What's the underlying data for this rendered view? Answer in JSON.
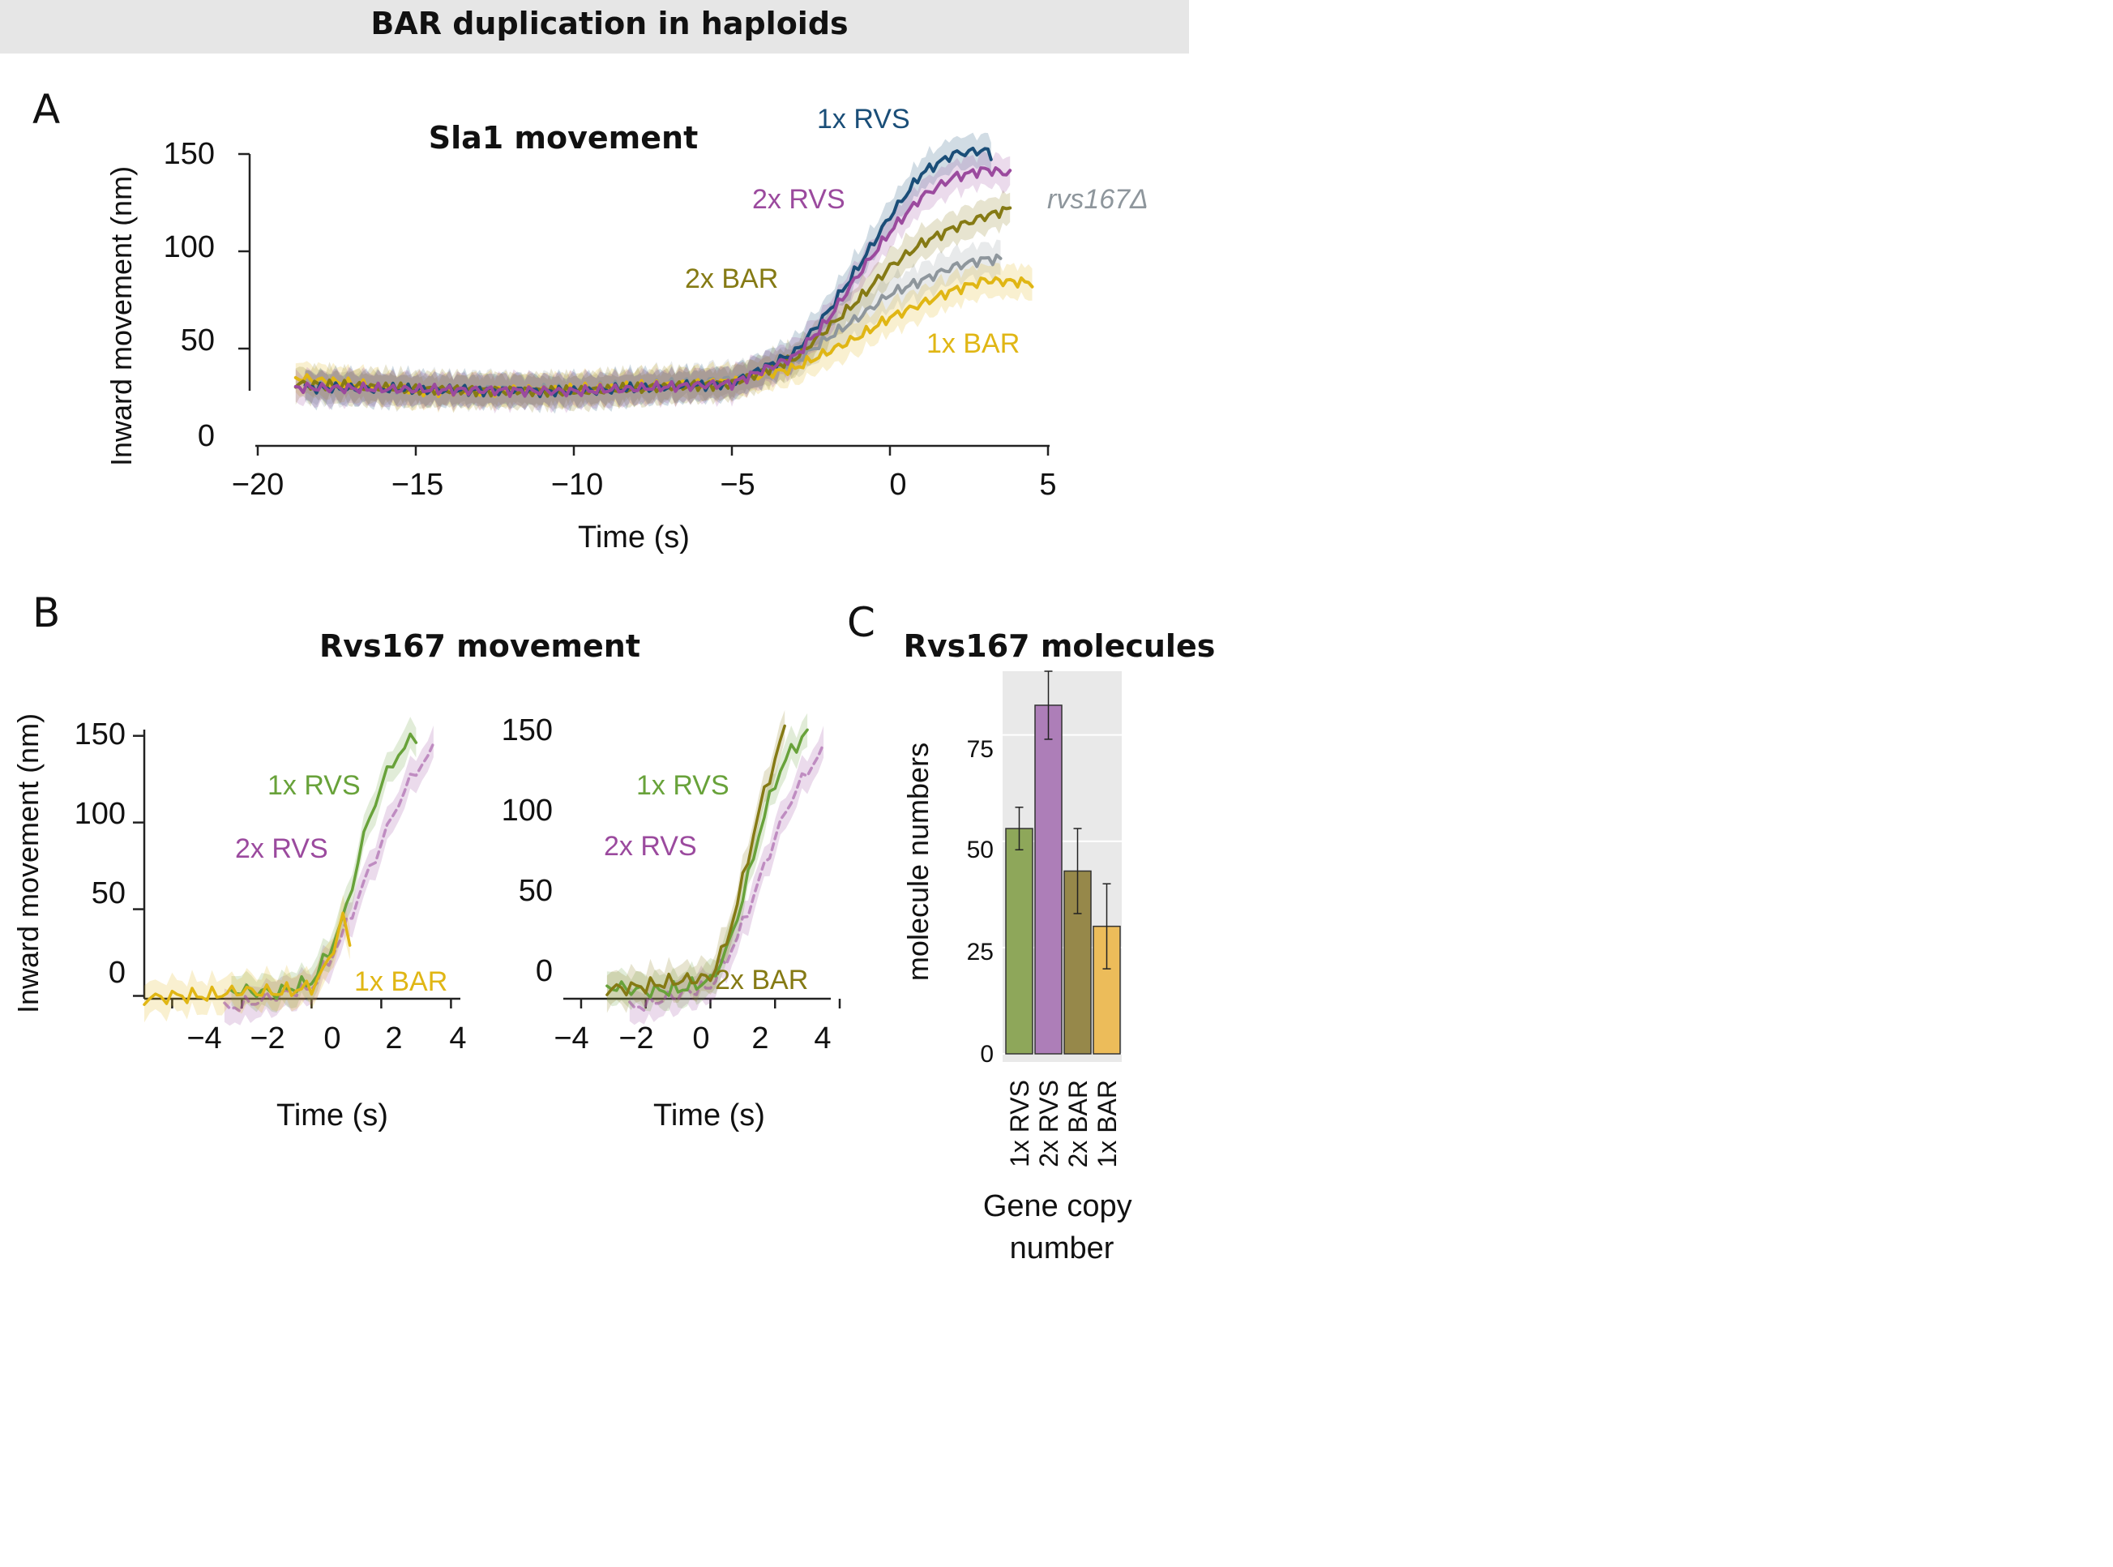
{
  "figure_title": "BAR duplication in haploids",
  "colors": {
    "rvs1x": "#1a4e78",
    "rvs2x": "#9b4a9e",
    "bar2x": "#857a14",
    "bar1x": "#e0b614",
    "delta": "#8e969c",
    "green": "#68a23a",
    "bar_green": "#8ea75a",
    "bar_purple": "#ad7eb8",
    "bar_olive": "#96884a",
    "bar_yellow": "#ecbc5a",
    "panel_bg": "#e9e9e9"
  },
  "panels": {
    "A": {
      "letter": "A"
    },
    "B": {
      "letter": "B",
      "title": "Rvs167 movement"
    },
    "C": {
      "letter": "C"
    }
  },
  "chart_data": [
    {
      "id": "A",
      "type": "line",
      "title": "Sla1 movement",
      "xlabel": "Time (s)",
      "ylabel": "Inward movement (nm)",
      "xlim": [
        -20,
        5
      ],
      "ylim": [
        0,
        150
      ],
      "xticks": [
        -20,
        -15,
        -10,
        -5,
        0,
        5
      ],
      "xtick_labels": [
        "−20",
        "−15",
        "−10",
        "−5",
        "0",
        "5"
      ],
      "yticks": [
        0,
        50,
        100,
        150
      ],
      "ytick_labels": [
        "0",
        "50",
        "100",
        "150"
      ],
      "series": [
        {
          "name": "rvs167Δ",
          "color_key": "delta",
          "x": [
            -18.5,
            -15,
            -10,
            -5,
            -3,
            -2,
            -1,
            0,
            1,
            2,
            3,
            3.5
          ],
          "y": [
            30,
            29,
            29,
            34,
            43,
            55,
            66,
            78,
            85,
            92,
            96,
            96
          ]
        },
        {
          "name": "1x BAR",
          "color_key": "bar1x",
          "x": [
            -18.8,
            -15,
            -10,
            -5,
            -3,
            -2,
            -1,
            0,
            1,
            2,
            3,
            4.5
          ],
          "y": [
            35,
            28,
            29,
            33,
            40,
            48,
            56,
            66,
            73,
            80,
            85,
            84
          ]
        },
        {
          "name": "2x BAR",
          "color_key": "bar2x",
          "x": [
            -18.8,
            -15,
            -10,
            -5,
            -3,
            -2,
            -1,
            0,
            1,
            2,
            3,
            3.8
          ],
          "y": [
            32,
            29,
            28,
            32,
            45,
            60,
            75,
            92,
            104,
            112,
            118,
            122
          ]
        },
        {
          "name": "1x RVS",
          "color_key": "rvs1x",
          "x": [
            -18.5,
            -15,
            -10,
            -5,
            -3,
            -2,
            -1,
            0,
            1,
            2,
            3,
            3.2
          ],
          "y": [
            30,
            29,
            28,
            32,
            48,
            68,
            92,
            118,
            140,
            150,
            152,
            150
          ]
        },
        {
          "name": "2x RVS",
          "color_key": "rvs2x",
          "x": [
            -18.8,
            -15,
            -10,
            -5,
            -3,
            -2,
            -1,
            0,
            1,
            2,
            3,
            3.8
          ],
          "y": [
            30,
            29,
            28,
            32,
            46,
            64,
            88,
            110,
            128,
            138,
            142,
            140
          ]
        }
      ],
      "labels": [
        {
          "text": "1x RVS",
          "color_key": "rvs1x"
        },
        {
          "text": "2x RVS",
          "color_key": "rvs2x"
        },
        {
          "text": "rvs167Δ",
          "color_key": "delta"
        },
        {
          "text": "2x BAR",
          "color_key": "bar2x"
        },
        {
          "text": "1x BAR",
          "color_key": "bar1x"
        }
      ]
    },
    {
      "id": "B1",
      "type": "line",
      "xlabel": "Time (s)",
      "ylabel": "Inward movement (nm)",
      "xlim": [
        -4.8,
        4.2
      ],
      "ylim": [
        -18,
        155
      ],
      "xticks": [
        -4,
        -2,
        0,
        2,
        4
      ],
      "xtick_labels": [
        "−4",
        "−2",
        "0",
        "2",
        "4"
      ],
      "yticks": [
        0,
        50,
        100,
        150
      ],
      "ytick_labels": [
        "0",
        "50",
        "100",
        "150"
      ],
      "series": [
        {
          "name": "2x RVS",
          "color_key": "rvs2x",
          "dashed": true,
          "x": [
            -2.5,
            -1,
            0,
            0.5,
            1,
            1.5,
            2,
            2.5,
            3,
            3.5
          ],
          "y": [
            -8,
            0,
            5,
            20,
            40,
            65,
            88,
            112,
            130,
            142
          ]
        },
        {
          "name": "1x RVS",
          "color_key": "green",
          "x": [
            -2.3,
            -1,
            0,
            0.5,
            1,
            1.5,
            2,
            2.5,
            3
          ],
          "y": [
            3,
            2,
            8,
            25,
            50,
            92,
            122,
            140,
            150
          ]
        },
        {
          "name": "1x BAR",
          "color_key": "bar1x",
          "x": [
            -4.8,
            -4,
            -3,
            -2,
            -1,
            0,
            0.5,
            0.9,
            1.1
          ],
          "y": [
            -2,
            0,
            0,
            3,
            2,
            5,
            20,
            45,
            30
          ]
        }
      ],
      "labels": [
        {
          "text": "1x RVS",
          "color_key": "green"
        },
        {
          "text": "2x RVS",
          "color_key": "rvs2x"
        },
        {
          "text": "1x BAR",
          "color_key": "bar1x"
        }
      ]
    },
    {
      "id": "B2",
      "type": "line",
      "xlabel": "Time (s)",
      "ylabel": "",
      "xlim": [
        -4.3,
        4.1
      ],
      "ylim": [
        -18,
        155
      ],
      "xticks": [
        -4,
        -2,
        0,
        2,
        4
      ],
      "xtick_labels": [
        "−4",
        "−2",
        "0",
        "2",
        "4"
      ],
      "yticks": [
        0,
        50,
        100,
        150
      ],
      "ytick_labels": [
        "0",
        "50",
        "100",
        "150"
      ],
      "series": [
        {
          "name": "2x RVS",
          "color_key": "rvs2x",
          "dashed": true,
          "x": [
            -2.5,
            -1,
            0,
            0.5,
            1,
            1.5,
            2,
            2.5,
            3,
            3.5
          ],
          "y": [
            -8,
            0,
            5,
            20,
            40,
            65,
            90,
            112,
            128,
            140
          ]
        },
        {
          "name": "1x RVS",
          "color_key": "green",
          "x": [
            -3.2,
            -2,
            -1,
            0,
            0.5,
            1,
            1.5,
            2,
            2.5,
            3
          ],
          "y": [
            5,
            2,
            3,
            8,
            25,
            55,
            92,
            122,
            140,
            150
          ]
        },
        {
          "name": "2x BAR",
          "color_key": "bar2x",
          "x": [
            -3.2,
            -2,
            -1,
            0,
            0.5,
            1,
            1.5,
            2,
            2.3
          ],
          "y": [
            3,
            5,
            8,
            10,
            30,
            65,
            105,
            135,
            152
          ]
        }
      ],
      "labels": [
        {
          "text": "1x RVS",
          "color_key": "green"
        },
        {
          "text": "2x RVS",
          "color_key": "rvs2x"
        },
        {
          "text": "2x BAR",
          "color_key": "bar2x"
        }
      ]
    },
    {
      "id": "C",
      "type": "bar",
      "title": "Rvs167 molecules",
      "xlabel": "Gene copy number",
      "ylabel": "molecule numbers",
      "categories": [
        "1x RVS",
        "2x RVS",
        "2x BAR",
        "1x BAR"
      ],
      "values": [
        53,
        82,
        43,
        30
      ],
      "errors": [
        5,
        8,
        10,
        10
      ],
      "color_keys": [
        "bar_green",
        "bar_purple",
        "bar_olive",
        "bar_yellow"
      ],
      "ylim": [
        0,
        90
      ],
      "yticks": [
        0,
        25,
        50,
        75
      ],
      "ytick_labels": [
        "0",
        "25",
        "50",
        "75"
      ]
    }
  ]
}
